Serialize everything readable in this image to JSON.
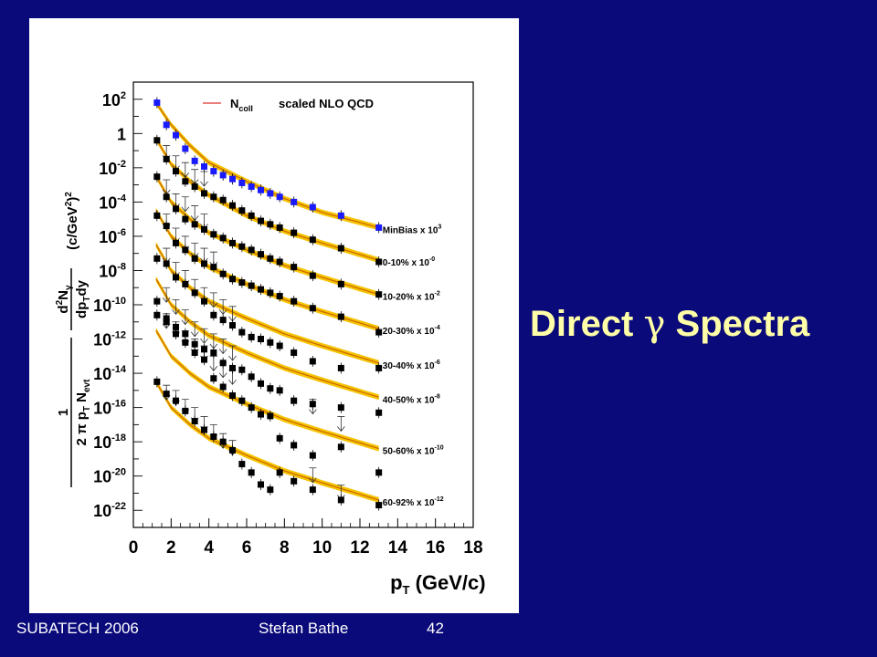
{
  "slide": {
    "title_before": "Direct ",
    "title_symbol": "γ",
    "title_after": " Spectra"
  },
  "footer": {
    "left": "SUBATECH 2006",
    "center": "Stefan Bathe",
    "page": "42"
  },
  "colors": {
    "background": "#0a0a7a",
    "title": "#ffffa8",
    "band": "#f5c400",
    "curve": "#cc6600",
    "blue_points": "#1a1aff",
    "black_points": "#000000",
    "legend_line": "#e03030"
  },
  "chart_data": {
    "type": "scatter",
    "log_y": true,
    "xlim": [
      0,
      18
    ],
    "ylim": [
      1e-23,
      1000
    ],
    "x_ticks": [
      "0",
      "2",
      "4",
      "6",
      "8",
      "10",
      "12",
      "14",
      "16",
      "18"
    ],
    "y_ticks": [
      {
        "base": "10",
        "exp": "2"
      },
      {
        "base": "1",
        "exp": ""
      },
      {
        "base": "10",
        "exp": "-2"
      },
      {
        "base": "10",
        "exp": "-4"
      },
      {
        "base": "10",
        "exp": "-6"
      },
      {
        "base": "10",
        "exp": "-8"
      },
      {
        "base": "10",
        "exp": "-10"
      },
      {
        "base": "10",
        "exp": "-12"
      },
      {
        "base": "10",
        "exp": "-14"
      },
      {
        "base": "10",
        "exp": "-16"
      },
      {
        "base": "10",
        "exp": "-18"
      },
      {
        "base": "10",
        "exp": "-20"
      },
      {
        "base": "10",
        "exp": "-22"
      }
    ],
    "xlabel": {
      "p": "p",
      "sub": "T",
      "rest": " (GeV/c)"
    },
    "ylabel": "1/(2π pT Nevt) d²Nγ/dpTdy (c/GeV²)²",
    "legend": {
      "N": "N",
      "sub": "coll",
      "text": "scaled NLO QCD"
    },
    "series": [
      {
        "name": "MinBias x 10",
        "scale_exp": "3",
        "color": "blue",
        "x": [
          1.25,
          1.75,
          2.25,
          2.75,
          3.25,
          3.75,
          4.25,
          4.75,
          5.25,
          5.75,
          6.25,
          6.75,
          7.25,
          7.75,
          8.5,
          9.5,
          11.0,
          13.0
        ],
        "y": [
          63,
          3.2,
          0.8,
          0.13,
          0.025,
          0.0118,
          0.0063,
          0.0037,
          0.0022,
          0.0013,
          0.00079,
          0.0005,
          0.00032,
          0.0002,
          0.0001,
          5e-05,
          1.6e-05,
          3.2e-06
        ],
        "limits": [],
        "curve": [
          [
            1.2,
            63
          ],
          [
            2,
            3.2
          ],
          [
            3,
            0.2
          ],
          [
            4,
            0.02
          ],
          [
            6,
            0.0016
          ],
          [
            8,
            0.00016
          ],
          [
            10,
            2.5e-05
          ],
          [
            13,
            3.2e-06
          ]
        ]
      },
      {
        "name": "0-10%   x 10",
        "scale_exp": "-0",
        "color": "black",
        "x": [
          1.25,
          1.75,
          2.25,
          2.75,
          3.25,
          3.75,
          4.25,
          4.75,
          5.25,
          5.75,
          6.25,
          6.75,
          7.25,
          7.75,
          8.5,
          9.5,
          11.0,
          13.0
        ],
        "y": [
          0.4,
          0.032,
          0.0063,
          0.0016,
          0.00079,
          0.00032,
          0.0002,
          0.00013,
          6.3e-05,
          3.2e-05,
          1.6e-05,
          7.9e-06,
          5e-06,
          3.2e-06,
          1.6e-06,
          6.3e-07,
          2e-07,
          3.2e-08
        ],
        "limits": [
          [
            1.75,
            0.2
          ],
          [
            2.25,
            0.05
          ],
          [
            2.75,
            0.02
          ],
          [
            3.25,
            0.008
          ],
          [
            3.75,
            0.006
          ]
        ],
        "curve": [
          [
            1.2,
            0.5
          ],
          [
            2,
            0.016
          ],
          [
            3,
            0.0016
          ],
          [
            4,
            0.00025
          ],
          [
            6,
            1.6e-05
          ],
          [
            8,
            2e-06
          ],
          [
            10,
            4e-07
          ],
          [
            13,
            4e-08
          ]
        ]
      },
      {
        "name": "10-20%   x 10",
        "scale_exp": "-2",
        "color": "black",
        "x": [
          1.25,
          1.75,
          2.25,
          2.75,
          3.25,
          3.75,
          4.25,
          4.75,
          5.25,
          5.75,
          6.25,
          6.75,
          7.25,
          7.75,
          8.5,
          9.5,
          11.0,
          13.0
        ],
        "y": [
          0.003,
          0.0002,
          4e-05,
          1e-05,
          5e-06,
          2.5e-06,
          1.3e-06,
          7.9e-07,
          4e-07,
          2.5e-07,
          1.6e-07,
          8.9e-08,
          5e-08,
          3.2e-08,
          1.6e-08,
          5e-09,
          1.6e-09,
          4e-10
        ],
        "limits": [
          [
            1.75,
            0.002
          ],
          [
            2.25,
            0.0003
          ],
          [
            2.75,
            0.0002
          ],
          [
            3.25,
            6e-05
          ],
          [
            3.75,
            2e-05
          ]
        ],
        "curve": [
          [
            1.2,
            0.0032
          ],
          [
            2,
            0.0001
          ],
          [
            3,
            1e-05
          ],
          [
            4,
            1.6e-06
          ],
          [
            6,
            1.6e-07
          ],
          [
            8,
            2e-08
          ],
          [
            10,
            4e-09
          ],
          [
            13,
            4e-10
          ]
        ]
      },
      {
        "name": "20-30%   x 10",
        "scale_exp": "-4",
        "color": "black",
        "x": [
          1.25,
          1.75,
          2.25,
          2.75,
          3.25,
          3.75,
          4.25,
          4.75,
          5.25,
          5.75,
          6.25,
          6.75,
          7.25,
          7.75,
          8.5,
          9.5,
          11.0,
          13.0
        ],
        "y": [
          1.6e-05,
          4e-06,
          4e-07,
          1.6e-07,
          5e-08,
          2.5e-08,
          1.6e-08,
          6.3e-09,
          3.2e-09,
          2e-09,
          1.3e-09,
          7.9e-10,
          5e-10,
          3.2e-10,
          1.6e-10,
          6.3e-11,
          2e-11,
          2.5e-12
        ],
        "limits": [
          [
            1.75,
            2e-05
          ],
          [
            2.25,
            3e-06
          ],
          [
            2.75,
            1e-06
          ],
          [
            3.25,
            4e-07
          ],
          [
            3.75,
            2e-07
          ],
          [
            4.25,
            1.2e-07
          ]
        ],
        "curve": [
          [
            1.2,
            3.2e-05
          ],
          [
            2,
            1e-06
          ],
          [
            3,
            1e-07
          ],
          [
            4,
            1.6e-08
          ],
          [
            6,
            1.6e-09
          ],
          [
            8,
            2e-10
          ],
          [
            10,
            4e-11
          ],
          [
            13,
            4e-12
          ]
        ]
      },
      {
        "name": "30-40%   x 10",
        "scale_exp": "-6",
        "color": "black",
        "x": [
          1.25,
          1.75,
          2.25,
          2.75,
          3.25,
          3.75,
          4.25,
          4.75,
          5.25,
          5.75,
          6.25,
          6.75,
          7.25,
          7.75,
          8.5,
          9.5,
          11.0,
          13.0
        ],
        "y": [
          5e-08,
          2.5e-08,
          4e-09,
          1.6e-09,
          5e-10,
          1.6e-10,
          2.5e-11,
          1.3e-11,
          6.3e-12,
          2.5e-12,
          1.3e-12,
          1e-12,
          6.3e-13,
          4e-13,
          1.6e-13,
          5e-14,
          2e-14,
          2e-14
        ],
        "limits": [
          [
            1.75,
            2e-07
          ],
          [
            2.25,
            3e-08
          ],
          [
            2.75,
            1e-08
          ],
          [
            3.25,
            3e-09
          ],
          [
            3.75,
            1e-09
          ],
          [
            4.25,
            5e-10
          ],
          [
            4.75,
            2e-10
          ],
          [
            5.25,
            8e-11
          ]
        ],
        "curve": [
          [
            1.2,
            3.2e-07
          ],
          [
            2,
            1e-08
          ],
          [
            3,
            1e-09
          ],
          [
            4,
            1.6e-10
          ],
          [
            6,
            1.6e-11
          ],
          [
            8,
            2e-12
          ],
          [
            10,
            4e-13
          ],
          [
            13,
            4e-14
          ]
        ]
      },
      {
        "name": "40-50%   x 10",
        "scale_exp": "-8",
        "color": "black",
        "x": [
          1.25,
          1.75,
          2.25,
          2.75,
          3.25,
          3.75,
          4.25,
          4.75,
          5.25,
          5.75,
          6.25,
          6.75,
          7.25,
          7.75,
          8.5,
          9.5,
          11.0,
          13.0
        ],
        "y": [
          1.6e-10,
          1.6e-11,
          5e-12,
          2e-12,
          5e-13,
          2.5e-13,
          1.6e-13,
          4e-14,
          2e-14,
          1.6e-14,
          6.3e-15,
          2.5e-15,
          1.3e-15,
          1e-15,
          2.5e-16,
          1.6e-16,
          1e-16,
          5e-17
        ],
        "limits": [
          [
            1.75,
            1e-09
          ],
          [
            2.25,
            2e-10
          ],
          [
            2.75,
            5e-11
          ],
          [
            3.25,
            1e-11
          ],
          [
            3.75,
            4e-12
          ],
          [
            4.25,
            2e-12
          ],
          [
            4.75,
            1e-12
          ],
          [
            5.25,
            4e-13
          ]
        ],
        "curve": [
          [
            1.2,
            3.2e-09
          ],
          [
            2,
            1e-10
          ],
          [
            3,
            1e-11
          ],
          [
            4,
            1.6e-12
          ],
          [
            6,
            1.6e-13
          ],
          [
            8,
            2e-14
          ],
          [
            10,
            4e-15
          ],
          [
            13,
            4e-16
          ]
        ]
      },
      {
        "name": "50-60%   x 10",
        "scale_exp": "-10",
        "color": "black",
        "x": [
          1.25,
          1.75,
          2.25,
          2.75,
          3.25,
          3.75,
          4.25,
          4.75,
          5.25,
          5.75,
          6.25,
          6.75,
          7.25,
          7.75,
          8.5,
          9.5,
          11.0,
          13.0
        ],
        "y": [
          2.5e-11,
          1e-11,
          2e-12,
          6.3e-13,
          1.6e-13,
          6.3e-14,
          5e-15,
          1.6e-15,
          5e-16,
          2.5e-16,
          1e-16,
          4e-17,
          3.2e-17,
          1.6e-18,
          6.3e-19,
          1.6e-19,
          5e-19,
          1.6e-20
        ],
        "limits": [
          [
            1.75,
            3e-11
          ],
          [
            2.25,
            1e-11
          ],
          [
            2.75,
            3e-12
          ],
          [
            3.25,
            1e-12
          ],
          [
            3.75,
            4e-13
          ],
          [
            4.25,
            1e-13
          ],
          [
            4.75,
            4e-14
          ],
          [
            5.25,
            1.6e-14
          ],
          [
            9.5,
            3e-16
          ],
          [
            11.0,
            3e-17
          ]
        ],
        "curve": [
          [
            1.2,
            3.2e-12
          ],
          [
            2,
            1e-13
          ],
          [
            3,
            1e-14
          ],
          [
            4,
            1.6e-15
          ],
          [
            6,
            1.6e-16
          ],
          [
            8,
            2e-17
          ],
          [
            10,
            4e-18
          ],
          [
            13,
            4e-19
          ]
        ]
      },
      {
        "name": "60-92%   x 10",
        "scale_exp": "-12",
        "color": "black",
        "x": [
          1.25,
          1.75,
          2.25,
          2.75,
          3.25,
          3.75,
          4.25,
          4.75,
          5.25,
          5.75,
          6.25,
          6.75,
          7.25,
          7.75,
          8.5,
          9.5,
          11.0,
          13.0
        ],
        "y": [
          3.2e-15,
          6.3e-16,
          2.5e-16,
          6.3e-17,
          1.6e-17,
          5e-18,
          2e-18,
          1e-18,
          3.2e-19,
          5e-20,
          1.6e-20,
          3.2e-21,
          1.6e-21,
          1.6e-20,
          5e-21,
          1.6e-21,
          4e-22,
          2e-22
        ],
        "limits": [
          [
            1.75,
            2e-15
          ],
          [
            2.25,
            1e-15
          ],
          [
            2.75,
            3e-16
          ],
          [
            3.25,
            1e-16
          ],
          [
            3.75,
            3e-17
          ],
          [
            4.25,
            1e-17
          ],
          [
            4.75,
            3e-18
          ],
          [
            5.25,
            1.2e-18
          ],
          [
            9.5,
            3e-20
          ],
          [
            11.0,
            3e-21
          ]
        ],
        "curve": [
          [
            1.2,
            3.2e-15
          ],
          [
            2,
            1e-16
          ],
          [
            3,
            1e-17
          ],
          [
            4,
            1.6e-18
          ],
          [
            6,
            1.6e-19
          ],
          [
            8,
            2e-20
          ],
          [
            10,
            4e-21
          ],
          [
            13,
            4e-22
          ]
        ]
      }
    ]
  }
}
